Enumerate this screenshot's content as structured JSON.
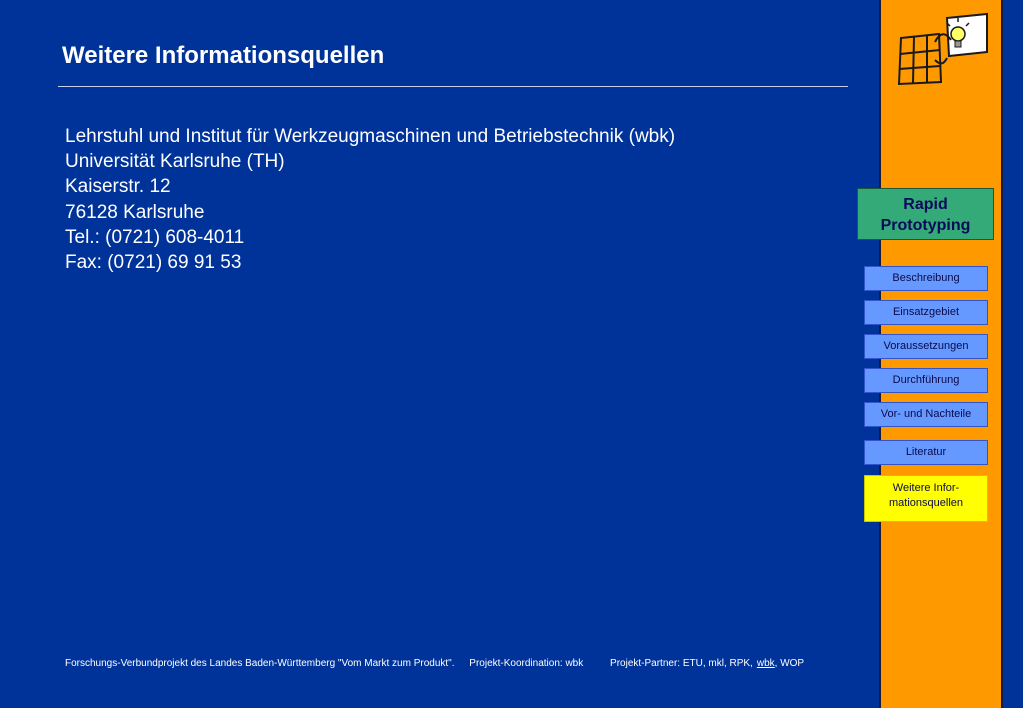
{
  "page": {
    "title": "Weitere Informationsquellen"
  },
  "address": {
    "lines": [
      "Lehrstuhl und Institut für Werkzeugmaschinen und Betriebstechnik (wbk)",
      "Universität Karlsruhe (TH)",
      "Kaiserstr. 12",
      "76128 Karlsruhe",
      "Tel.: (0721) 608-4011",
      "Fax: (0721) 69 91 53"
    ]
  },
  "sidebar": {
    "logo_icon": "grid-lightbulb-logo",
    "section": {
      "line1": "Rapid",
      "line2": "Prototyping"
    },
    "nav": [
      {
        "label": "Beschreibung"
      },
      {
        "label": "Einsatzgebiet"
      },
      {
        "label": "Voraussetzungen"
      },
      {
        "label": "Durchführung"
      },
      {
        "label": "Vor- und Nachteile"
      },
      {
        "label": "Literatur"
      }
    ],
    "active": {
      "line1": "Weitere Infor-",
      "line2": "mationsquellen"
    }
  },
  "footer": {
    "project": "Forschungs-Verbundprojekt des Landes Baden-Württemberg \"Vom Markt zum Produkt\".",
    "coordination": "Projekt-Koordination: wbk",
    "partners_prefix": "Projekt-Partner: ETU, mkl, RPK,",
    "partners_link": "wbk",
    "partners_suffix": ", WOP"
  },
  "colors": {
    "background": "#00339a",
    "sidebar": "#ff9900",
    "section_box": "#33aa77",
    "nav_button": "#6699ff",
    "nav_active": "#ffff00"
  }
}
